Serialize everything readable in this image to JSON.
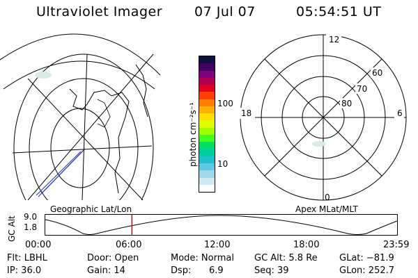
{
  "header": {
    "instrument": "Ultraviolet Imager",
    "date": "07 Jul 07",
    "time": "05:54:51 UT"
  },
  "colorbar": {
    "unit_label": "photon cm⁻²s⁻¹",
    "tick_100": "100",
    "tick_10": "10",
    "colors": [
      "#101040",
      "#400060",
      "#800080",
      "#b00050",
      "#e00020",
      "#ff4000",
      "#ff8000",
      "#ffb000",
      "#ffe000",
      "#e0ff00",
      "#a0ff00",
      "#40ff20",
      "#00e060",
      "#00d0a0",
      "#20c0d0",
      "#60c8e0",
      "#a0d8e8",
      "#d0e8f0",
      "#ffffff"
    ]
  },
  "polar": {
    "mlt_12": "12",
    "mlt_18": "18",
    "mlt_6": "6",
    "mlt_0": "0",
    "lat_60": "60",
    "lat_70": "70",
    "lat_80": "80"
  },
  "altitude_plot": {
    "left_label": "Geographic Lat/Lon",
    "right_label": "Apex MLat/MLT",
    "y_axis_label": "GC Alt",
    "y_ticks": [
      "9.0",
      "1.8"
    ],
    "x_ticks": [
      "00:00",
      "06:00",
      "12:00",
      "18:00",
      "23:59"
    ],
    "current_marker_hour": 5.91
  },
  "info": {
    "filter": "Flt: LBHL",
    "ip": "IP: 36.0",
    "door": "Door: Open",
    "gain": "Gain: 14",
    "mode": "Mode: Normal",
    "dsp_label": "Dsp:",
    "dsp_value": "6.9",
    "gc_alt": "GC Alt: 5.8 Re",
    "seq": "Seq: 39",
    "glat": "GLat: −81.9",
    "glon": "GLon: 252.7"
  }
}
